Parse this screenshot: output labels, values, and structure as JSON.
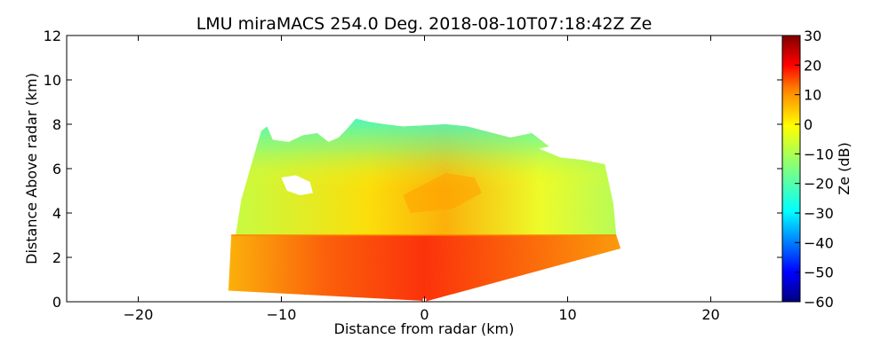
{
  "chart_data": {
    "type": "heatmap",
    "title": "LMU miraMACS 254.0 Deg. 2018-08-10T07:18:42Z  Ze",
    "xlabel": "Distance from radar (km)",
    "ylabel": "Distance Above radar  (km)",
    "xlim": [
      -25,
      25
    ],
    "ylim": [
      0,
      12
    ],
    "x_ticks": [
      -20,
      -10,
      0,
      10,
      20
    ],
    "x_tick_labels": [
      "−20",
      "−10",
      "0",
      "10",
      "20"
    ],
    "y_ticks": [
      0,
      2,
      4,
      6,
      8,
      10,
      12
    ],
    "y_tick_labels": [
      "0",
      "2",
      "4",
      "6",
      "8",
      "10",
      "12"
    ],
    "colorbar": {
      "label": "Ze (dB)",
      "colormap": "jet",
      "range": [
        -60,
        30
      ],
      "ticks": [
        30,
        20,
        10,
        0,
        -10,
        -20,
        -30,
        -40,
        -50,
        -60
      ],
      "tick_labels": [
        "30",
        "20",
        "10",
        "0",
        "−10",
        "−20",
        "−30",
        "−40",
        "−50",
        "−60"
      ]
    },
    "region": {
      "description": "RHI sector scan, echo from ~-13.7 km to ~13.7 km",
      "left_edge_top_km": [
        -11.2,
        7.9
      ],
      "right_edge_top_km": [
        12.8,
        6.0
      ],
      "right_edge_bottom_km": [
        13.7,
        2.4
      ],
      "left_edge_bottom_km": [
        -13.7,
        0.5
      ],
      "melting_layer_km": 3.0,
      "ze_below_melting_dB": [
        15,
        25
      ],
      "ze_above_melting_dB": [
        -25,
        5
      ],
      "cloud_top_km": 8.2
    }
  },
  "colors": {
    "jet_stops": [
      "#00007f",
      "#0000ff",
      "#007fff",
      "#00ffff",
      "#7fff7f",
      "#ffff00",
      "#ff7f00",
      "#ff0000",
      "#7f0000"
    ]
  }
}
